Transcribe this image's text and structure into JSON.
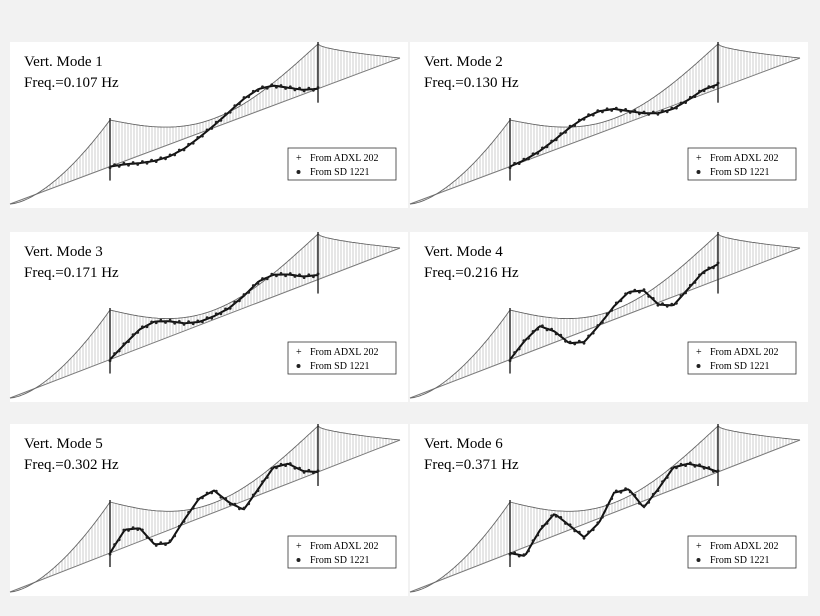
{
  "figure": {
    "panels": [
      {
        "mode_label": "Vert. Mode 1",
        "freq_label": "Freq.=0.107 Hz",
        "legend": [
          "From ADXL 202",
          "From SD 1221"
        ],
        "shape": [
          0,
          -0.15,
          -0.35,
          -0.5,
          -0.55,
          -0.45,
          -0.2,
          0.1,
          0.45,
          0.8,
          1.0,
          0.9,
          0.55,
          0.2,
          0
        ]
      },
      {
        "mode_label": "Vert. Mode 2",
        "freq_label": "Freq.=0.130 Hz",
        "legend": [
          "From ADXL 202",
          "From SD 1221"
        ],
        "shape": [
          0,
          0.05,
          0.2,
          0.45,
          0.75,
          0.95,
          1.0,
          0.85,
          0.5,
          0.15,
          -0.1,
          -0.15,
          0,
          0.2,
          0.2
        ]
      },
      {
        "mode_label": "Vert. Mode 3",
        "freq_label": "Freq.=0.171 Hz",
        "legend": [
          "From ADXL 202",
          "From SD 1221"
        ],
        "shape": [
          0,
          0.45,
          0.85,
          0.95,
          0.7,
          0.35,
          0.15,
          0.15,
          0.25,
          0.55,
          0.95,
          1.0,
          0.75,
          0.4,
          0.2
        ]
      },
      {
        "mode_label": "Vert. Mode 4",
        "freq_label": "Freq.=0.216 Hz",
        "legend": [
          "From ADXL 202",
          "From SD 1221"
        ],
        "shape": [
          0,
          0.6,
          1.0,
          0.5,
          -0.3,
          -0.5,
          0,
          0.6,
          1.0,
          0.8,
          -0.1,
          -0.4,
          0.1,
          0.6,
          0.7
        ]
      },
      {
        "mode_label": "Vert. Mode 5",
        "freq_label": "Freq.=0.302 Hz",
        "legend": [
          "From ADXL 202",
          "From SD 1221"
        ],
        "shape": [
          0,
          0.8,
          0.6,
          -0.4,
          -0.6,
          0.2,
          0.9,
          1.0,
          0.2,
          -0.4,
          0.3,
          1.0,
          0.9,
          0.3,
          0
        ]
      },
      {
        "mode_label": "Vert. Mode 6",
        "freq_label": "Freq.=0.371 Hz",
        "legend": [
          "From ADXL 202",
          "From SD 1221"
        ],
        "shape": [
          0,
          -0.4,
          0.5,
          1.0,
          0.2,
          -0.6,
          -0.2,
          0.9,
          0.8,
          -0.3,
          0.3,
          1.0,
          0.9,
          0.5,
          0
        ]
      }
    ]
  }
}
